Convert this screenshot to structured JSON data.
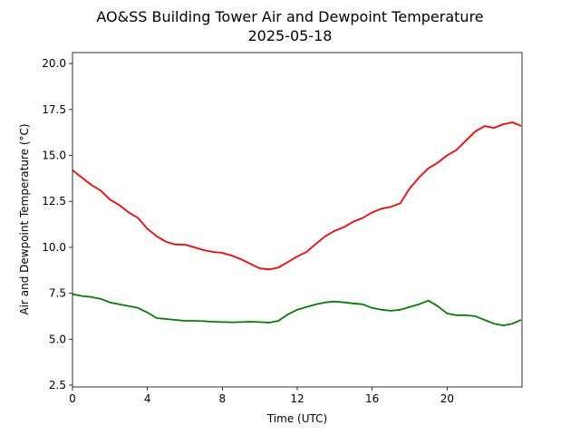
{
  "chart_data": {
    "type": "line",
    "title": "AO&SS Building Tower Air and Dewpoint Temperature",
    "subtitle": "2025-05-18",
    "xlabel": "Time (UTC)",
    "ylabel": "Air and Dewpoint Temperature (°C)",
    "xlim": [
      0,
      24
    ],
    "ylim": [
      2.4,
      20.6
    ],
    "xticks": [
      0,
      4,
      8,
      12,
      16,
      20
    ],
    "yticks": [
      2.5,
      5.0,
      7.5,
      10.0,
      12.5,
      15.0,
      17.5,
      20.0
    ],
    "ytick_labels": [
      "2.5",
      "5.0",
      "7.5",
      "10.0",
      "12.5",
      "15.0",
      "17.5",
      "20.0"
    ],
    "grid": false,
    "x": [
      0,
      0.5,
      1,
      1.5,
      2,
      2.5,
      3,
      3.5,
      4,
      4.5,
      5,
      5.5,
      6,
      6.5,
      7,
      7.5,
      8,
      8.5,
      9,
      9.5,
      10,
      10.5,
      11,
      11.5,
      12,
      12.5,
      13,
      13.5,
      14,
      14.5,
      15,
      15.5,
      16,
      16.5,
      17,
      17.5,
      18,
      18.5,
      19,
      19.5,
      20,
      20.5,
      21,
      21.5,
      22,
      22.5,
      23,
      23.5,
      23.95
    ],
    "series": [
      {
        "color": "#ff0000",
        "values": [
          14.2,
          13.8,
          13.4,
          13.1,
          12.6,
          12.3,
          11.9,
          11.6,
          11.0,
          10.6,
          10.3,
          10.15,
          10.15,
          10.0,
          9.85,
          9.75,
          9.7,
          9.55,
          9.35,
          9.1,
          8.85,
          8.8,
          8.9,
          9.2,
          9.5,
          9.75,
          10.2,
          10.6,
          10.9,
          11.1,
          11.4,
          11.6,
          11.9,
          12.1,
          12.2,
          12.4,
          13.2,
          13.8,
          14.3,
          14.6,
          15.0,
          15.3,
          15.8,
          16.3,
          16.6,
          16.5,
          16.7,
          16.8,
          16.6
        ]
      },
      {
        "color": "#008000",
        "values": [
          7.45,
          7.35,
          7.3,
          7.2,
          7.0,
          6.9,
          6.8,
          6.7,
          6.45,
          6.15,
          6.1,
          6.05,
          6.0,
          6.0,
          5.98,
          5.95,
          5.93,
          5.92,
          5.93,
          5.95,
          5.93,
          5.9,
          6.0,
          6.35,
          6.6,
          6.75,
          6.9,
          7.0,
          7.05,
          7.0,
          6.95,
          6.9,
          6.7,
          6.6,
          6.55,
          6.6,
          6.75,
          6.9,
          7.1,
          6.8,
          6.4,
          6.3,
          6.3,
          6.25,
          6.05,
          5.85,
          5.75,
          5.85,
          6.05
        ]
      }
    ]
  }
}
